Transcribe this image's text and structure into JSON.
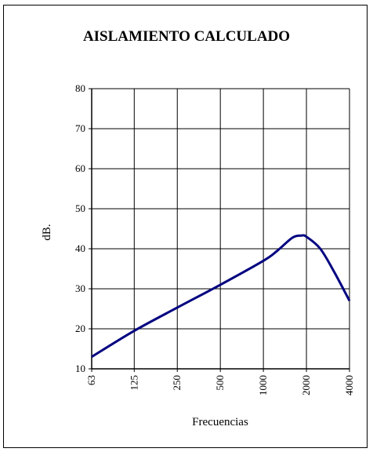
{
  "chart_data": {
    "type": "line",
    "title": "AISLAMIENTO CALCULADO",
    "xlabel": "Frecuencias",
    "ylabel": "dB.",
    "x_scale": "log",
    "x_ticks": [
      "63",
      "125",
      "250",
      "500",
      "1000",
      "2000",
      "4000"
    ],
    "xlim": [
      63,
      4000
    ],
    "ylim": [
      10,
      80
    ],
    "y_ticks": [
      10,
      20,
      30,
      40,
      50,
      60,
      70,
      80
    ],
    "grid": true,
    "legend": "none",
    "series": [
      {
        "color": "#000080",
        "x": [
          63,
          125,
          250,
          500,
          1000,
          1250,
          1600,
          1850,
          2000,
          2500,
          3150,
          4000
        ],
        "y": [
          13.0,
          19.5,
          25.3,
          31.0,
          37.0,
          39.5,
          42.8,
          43.3,
          43.0,
          40.0,
          34.0,
          27.0
        ]
      }
    ]
  }
}
